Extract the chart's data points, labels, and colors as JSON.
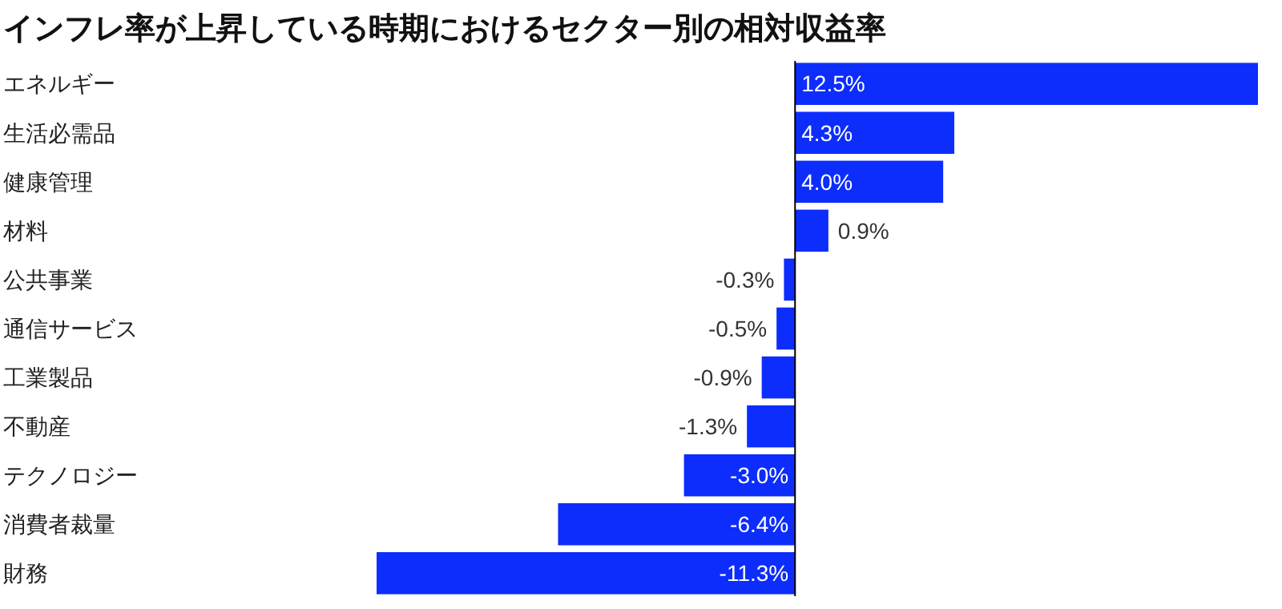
{
  "chart_data": {
    "type": "bar",
    "orientation": "horizontal",
    "title": "インフレ率が上昇している時期におけるセクター別の相対収益率",
    "categories": [
      "エネルギー",
      "生活必需品",
      "健康管理",
      "材料",
      "公共事業",
      "通信サービス",
      "工業製品",
      "不動産",
      "テクノロジー",
      "消費者裁量",
      "財務"
    ],
    "values": [
      12.5,
      4.3,
      4.0,
      0.9,
      -0.3,
      -0.5,
      -0.9,
      -1.3,
      -3.0,
      -6.4,
      -11.3
    ],
    "value_labels": [
      "12.5%",
      "4.3%",
      "4.0%",
      "0.9%",
      "-0.3%",
      "-0.5%",
      "-0.9%",
      "-1.3%",
      "-3.0%",
      "-6.4%",
      "-11.3%"
    ],
    "color": "#0d2dfd"
  }
}
